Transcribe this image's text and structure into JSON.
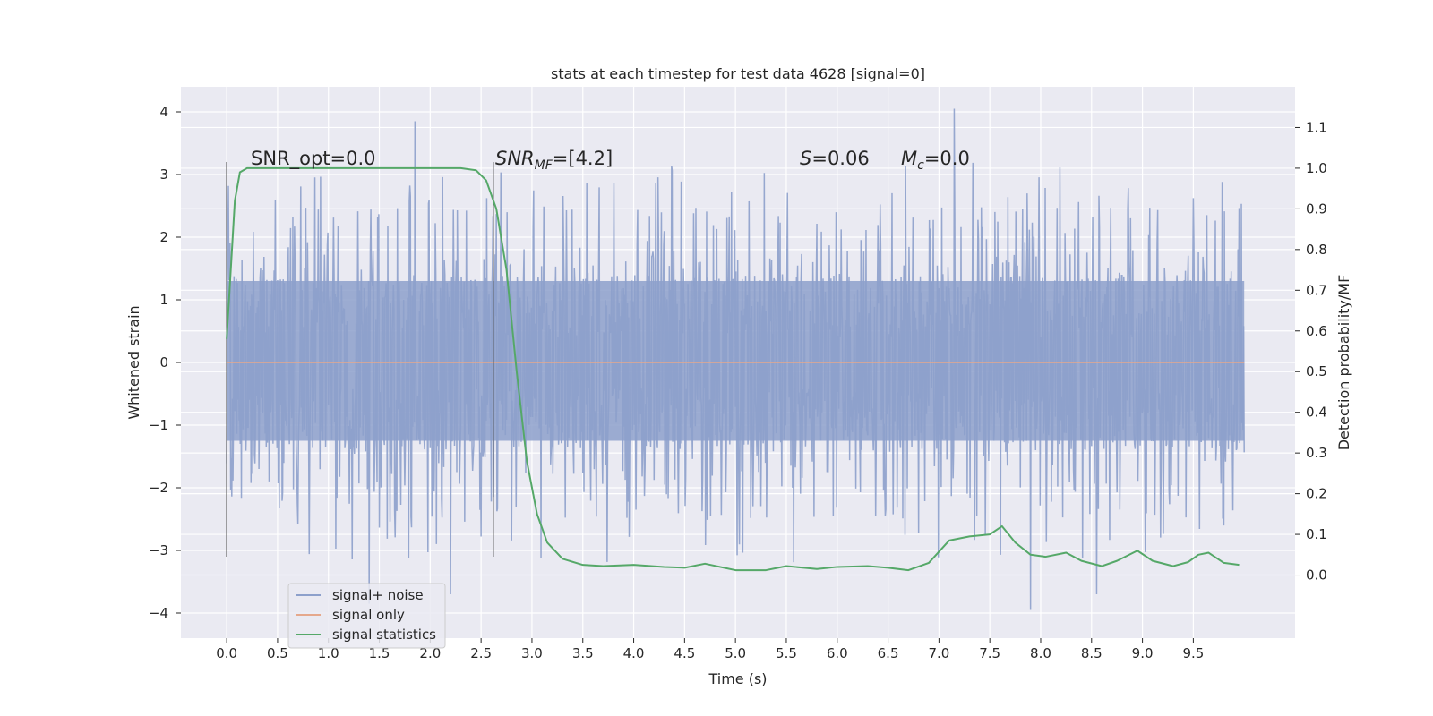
{
  "chart_data": {
    "type": "line",
    "title": "stats at each timestep for test data 4628 [signal=0]",
    "xlabel": "Time (s)",
    "ylabel": "Whitened strain",
    "y2label": "Detection probability/MF",
    "xlim": [
      -0.45,
      10.5
    ],
    "ylim": [
      -4.4,
      4.4
    ],
    "y2lim": [
      -0.155,
      1.2
    ],
    "grid": true,
    "legend_placement": "lower-left",
    "x_ticks": [
      "0.0",
      "0.5",
      "1.0",
      "1.5",
      "2.0",
      "2.5",
      "3.0",
      "3.5",
      "4.0",
      "4.5",
      "5.0",
      "5.5",
      "6.0",
      "6.5",
      "7.0",
      "7.5",
      "8.0",
      "8.5",
      "9.0",
      "9.5"
    ],
    "y_ticks": [
      "4",
      "3",
      "2",
      "1",
      "0",
      "−1",
      "−2",
      "−3",
      "−4"
    ],
    "y2_ticks": [
      "1.1",
      "1.0",
      "0.9",
      "0.8",
      "0.7",
      "0.6",
      "0.5",
      "0.4",
      "0.3",
      "0.2",
      "0.1",
      "0.0"
    ],
    "annotations": {
      "snr_opt": "SNR_opt=0.0",
      "snr_mf_main": "SNR",
      "snr_mf_sub": "MF",
      "snr_mf_value": "=[4.2]",
      "s_main": "S",
      "s_value": "=0.06",
      "mc_main": "M",
      "mc_sub": "c",
      "mc_value": "=0.0"
    },
    "vlines": [
      {
        "x": 0.0,
        "y_range": [
          -3.1,
          3.2
        ]
      },
      {
        "x": 2.62,
        "y_range": [
          -3.1,
          3.2
        ]
      }
    ],
    "series": [
      {
        "name": "signal+ noise",
        "color": "#8da0cb",
        "axis": "left",
        "x_range": [
          0.0,
          10.0
        ],
        "envelope": {
          "p_low": -1.25,
          "p_high": 1.3,
          "max_peak": 4.05,
          "min_peak": -3.95
        },
        "notable_peaks": [
          {
            "x": 1.85,
            "y": 3.85
          },
          {
            "x": 7.15,
            "y": 4.05
          },
          {
            "x": 7.9,
            "y": -3.95
          },
          {
            "x": 1.4,
            "y": -3.85
          },
          {
            "x": 2.2,
            "y": -3.7
          },
          {
            "x": 8.55,
            "y": -3.7
          }
        ]
      },
      {
        "name": "signal only",
        "color": "#e5a88c",
        "axis": "left",
        "x": [
          0.0,
          10.0
        ],
        "y": [
          0.0,
          0.0
        ]
      },
      {
        "name": "signal statistics",
        "color": "#55a868",
        "axis": "right",
        "x": [
          0.0,
          0.08,
          0.13,
          0.2,
          0.3,
          0.5,
          1.0,
          1.5,
          2.0,
          2.3,
          2.45,
          2.55,
          2.65,
          2.75,
          2.85,
          2.95,
          3.05,
          3.15,
          3.3,
          3.5,
          3.7,
          4.0,
          4.3,
          4.5,
          4.7,
          5.0,
          5.3,
          5.5,
          5.8,
          6.0,
          6.3,
          6.5,
          6.7,
          6.9,
          7.1,
          7.3,
          7.5,
          7.62,
          7.75,
          7.9,
          8.05,
          8.25,
          8.4,
          8.6,
          8.75,
          8.95,
          9.1,
          9.3,
          9.45,
          9.55,
          9.65,
          9.8,
          9.95
        ],
        "y": [
          0.58,
          0.92,
          0.99,
          1.0,
          1.0,
          1.0,
          1.0,
          1.0,
          1.0,
          1.0,
          0.995,
          0.97,
          0.9,
          0.75,
          0.5,
          0.28,
          0.15,
          0.08,
          0.04,
          0.025,
          0.022,
          0.025,
          0.02,
          0.018,
          0.028,
          0.012,
          0.012,
          0.022,
          0.015,
          0.02,
          0.022,
          0.018,
          0.012,
          0.03,
          0.085,
          0.095,
          0.1,
          0.12,
          0.08,
          0.05,
          0.045,
          0.055,
          0.035,
          0.022,
          0.035,
          0.06,
          0.035,
          0.022,
          0.032,
          0.05,
          0.055,
          0.03,
          0.025
        ]
      }
    ]
  }
}
